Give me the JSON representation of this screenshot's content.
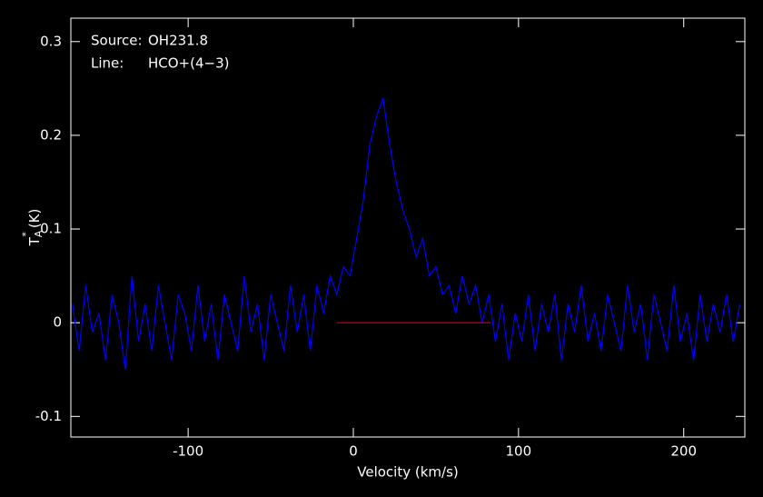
{
  "chart_data": {
    "type": "line",
    "xlabel": "Velocity (km/s)",
    "ylabel": {
      "main": "T",
      "sup": "*",
      "sub": "A",
      "unit": "(K)"
    },
    "annotations": [
      {
        "label": "Source:",
        "text": "OH231.8"
      },
      {
        "label": "Line:",
        "text": "HCO+(4−3)"
      }
    ],
    "xlim": [
      -171,
      237
    ],
    "ylim": [
      -0.122,
      0.325
    ],
    "xticks": [
      -100,
      0,
      100,
      200
    ],
    "yticks": [
      -0.1,
      0,
      0.1,
      0.2,
      0.3
    ],
    "baseline": {
      "x": [
        -10,
        83
      ],
      "y": 0,
      "color": "#ff0000"
    },
    "x": [
      -170,
      -166,
      -162,
      -158,
      -154,
      -150,
      -146,
      -142,
      -138,
      -134,
      -130,
      -126,
      -122,
      -118,
      -114,
      -110,
      -106,
      -102,
      -98,
      -94,
      -90,
      -86,
      -82,
      -78,
      -74,
      -70,
      -66,
      -62,
      -58,
      -54,
      -50,
      -46,
      -42,
      -38,
      -34,
      -30,
      -26,
      -22,
      -18,
      -14,
      -10,
      -6,
      -2,
      2,
      6,
      10,
      14,
      18,
      22,
      26,
      30,
      34,
      38,
      42,
      46,
      50,
      54,
      58,
      62,
      66,
      70,
      74,
      78,
      82,
      86,
      90,
      94,
      98,
      102,
      106,
      110,
      114,
      118,
      122,
      126,
      130,
      134,
      138,
      142,
      146,
      150,
      154,
      158,
      162,
      166,
      170,
      174,
      178,
      182,
      186,
      190,
      194,
      198,
      202,
      206,
      210,
      214,
      218,
      222,
      226,
      230,
      234
    ],
    "series": [
      {
        "color": "#0000ff",
        "values": [
          0.02,
          -0.03,
          0.04,
          -0.01,
          0.01,
          -0.04,
          0.03,
          0.0,
          -0.05,
          0.05,
          -0.02,
          0.02,
          -0.03,
          0.04,
          0.0,
          -0.04,
          0.03,
          0.01,
          -0.03,
          0.04,
          -0.02,
          0.02,
          -0.04,
          0.03,
          0.0,
          -0.03,
          0.05,
          -0.01,
          0.02,
          -0.04,
          0.03,
          0.0,
          -0.03,
          0.04,
          -0.01,
          0.03,
          -0.03,
          0.04,
          0.01,
          0.05,
          0.03,
          0.06,
          0.05,
          0.09,
          0.13,
          0.19,
          0.22,
          0.24,
          0.19,
          0.15,
          0.12,
          0.1,
          0.07,
          0.09,
          0.05,
          0.06,
          0.03,
          0.04,
          0.01,
          0.05,
          0.02,
          0.04,
          0.0,
          0.03,
          -0.02,
          0.02,
          -0.04,
          0.01,
          -0.02,
          0.03,
          -0.03,
          0.02,
          -0.01,
          0.03,
          -0.04,
          0.02,
          -0.01,
          0.04,
          -0.02,
          0.01,
          -0.03,
          0.03,
          0.0,
          -0.03,
          0.04,
          -0.01,
          0.02,
          -0.04,
          0.03,
          0.0,
          -0.03,
          0.04,
          -0.02,
          0.01,
          -0.04,
          0.03,
          -0.02,
          0.02,
          -0.01,
          0.03,
          -0.02,
          0.02
        ]
      }
    ]
  }
}
